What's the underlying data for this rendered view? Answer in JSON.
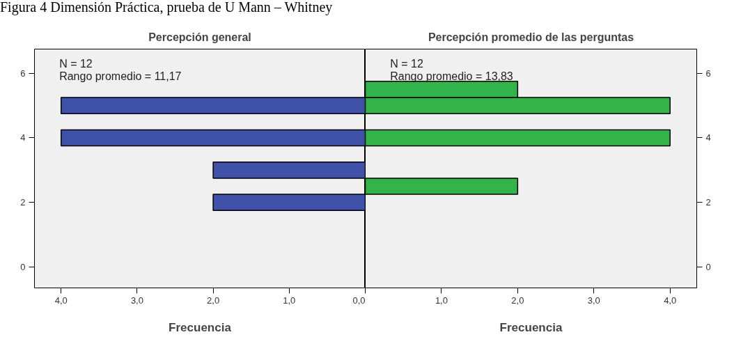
{
  "chart_data": [
    {
      "type": "other",
      "title": "Figura 4 Dimensión Práctica, prueba de U Mann – Whitney"
    },
    {
      "type": "bar",
      "orientation": "horizontal",
      "title": "Percepción general",
      "xlabel": "Frecuencia",
      "color": "#3f51a9",
      "x": [
        2,
        3,
        4,
        5
      ],
      "values": [
        2,
        2,
        4,
        4
      ],
      "xlim": [
        4.35,
        0
      ],
      "xticks": [
        {
          "value": 4,
          "label": "4,0"
        },
        {
          "value": 3,
          "label": "3,0"
        },
        {
          "value": 2,
          "label": "2,0"
        },
        {
          "value": 1,
          "label": "1,0"
        },
        {
          "value": 0,
          "label": "0,0"
        }
      ],
      "ylim": [
        -0.65,
        6.75
      ],
      "yticks": [
        0,
        2,
        4,
        6
      ],
      "annotations": [
        "N = 12",
        "Rango promedio = 11,17"
      ]
    },
    {
      "type": "bar",
      "orientation": "horizontal",
      "title": "Percepción promedio de las perguntas",
      "xlabel": "Frecuencia",
      "color": "#33b44a",
      "x": [
        2.5,
        4,
        5,
        5.5
      ],
      "values": [
        2,
        4,
        4,
        2
      ],
      "xlim": [
        0,
        4.35
      ],
      "xticks": [
        {
          "value": 0,
          "label": null
        },
        {
          "value": 1,
          "label": "1,0"
        },
        {
          "value": 2,
          "label": "2,0"
        },
        {
          "value": 3,
          "label": "3,0"
        },
        {
          "value": 4,
          "label": "4,0"
        }
      ],
      "ylim": [
        -0.65,
        6.75
      ],
      "yticks": [
        0,
        2,
        4,
        6
      ],
      "annotations": [
        "N = 12",
        "Rango promedio = 13,83"
      ]
    }
  ]
}
